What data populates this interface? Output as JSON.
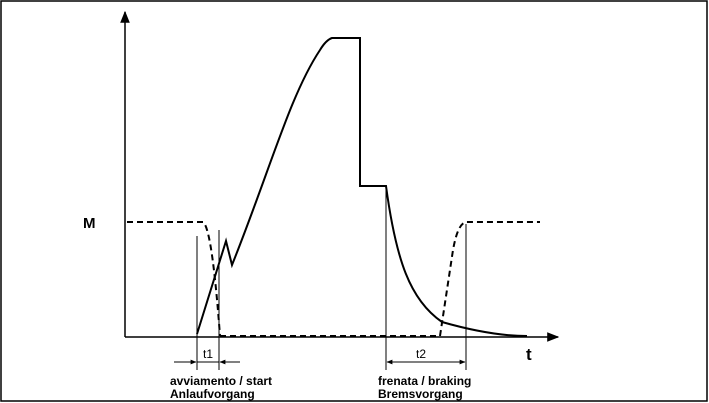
{
  "diagram": {
    "y_axis_label": "M",
    "x_axis_label": "t",
    "interval_1_label": "t1",
    "interval_2_label": "t2",
    "start_caption_line1": "avviamento / start",
    "start_caption_line2": "Anlaufvorgang",
    "braking_caption_line1": "frenata / braking",
    "braking_caption_line2": "Bremsvorgang"
  }
}
